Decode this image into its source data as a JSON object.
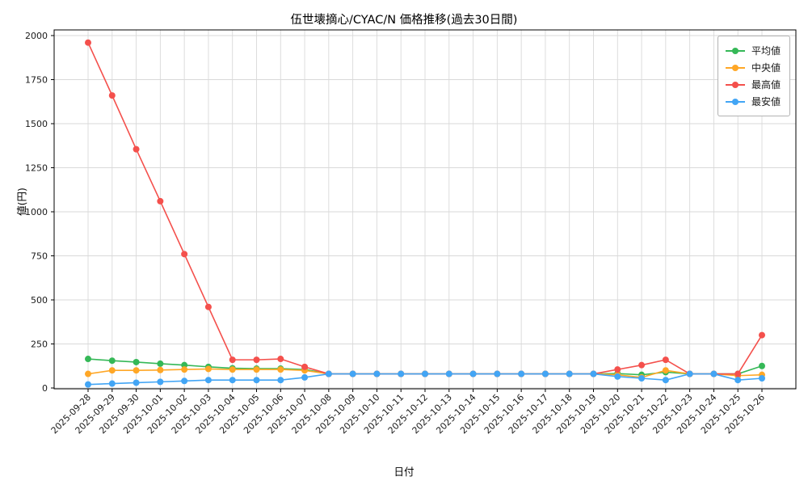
{
  "title": "伍世壊摘心/CYAC/N 価格推移(過去30日間)",
  "xlabel": "日付",
  "ylabel": "値(円)",
  "chart_data": {
    "type": "line",
    "x": [
      "2025-09-28",
      "2025-09-29",
      "2025-09-30",
      "2025-10-01",
      "2025-10-02",
      "2025-10-03",
      "2025-10-04",
      "2025-10-05",
      "2025-10-06",
      "2025-10-07",
      "2025-10-08",
      "2025-10-09",
      "2025-10-10",
      "2025-10-11",
      "2025-10-12",
      "2025-10-13",
      "2025-10-14",
      "2025-10-15",
      "2025-10-16",
      "2025-10-17",
      "2025-10-18",
      "2025-10-19",
      "2025-10-20",
      "2025-10-21",
      "2025-10-22",
      "2025-10-23",
      "2025-10-24",
      "2025-10-25",
      "2025-10-26"
    ],
    "series": [
      {
        "name": "平均値",
        "color": "#35b857",
        "values": [
          165,
          155,
          147,
          138,
          130,
          120,
          112,
          110,
          110,
          105,
          80,
          80,
          80,
          80,
          80,
          80,
          80,
          80,
          80,
          80,
          80,
          80,
          82,
          75,
          90,
          80,
          80,
          80,
          125
        ]
      },
      {
        "name": "中央値",
        "color": "#ffa726",
        "values": [
          80,
          100,
          100,
          102,
          105,
          108,
          105,
          105,
          105,
          100,
          80,
          80,
          80,
          80,
          80,
          80,
          80,
          80,
          80,
          80,
          80,
          80,
          75,
          60,
          100,
          80,
          80,
          70,
          75
        ]
      },
      {
        "name": "最高値",
        "color": "#f4504c",
        "values": [
          1960,
          1660,
          1355,
          1060,
          760,
          460,
          160,
          160,
          165,
          120,
          80,
          80,
          80,
          80,
          80,
          80,
          80,
          80,
          80,
          80,
          80,
          80,
          105,
          130,
          160,
          80,
          80,
          80,
          300
        ]
      },
      {
        "name": "最安値",
        "color": "#42a5f5",
        "values": [
          20,
          25,
          30,
          35,
          40,
          45,
          45,
          45,
          45,
          60,
          80,
          80,
          80,
          80,
          80,
          80,
          80,
          80,
          80,
          80,
          80,
          80,
          65,
          55,
          45,
          80,
          80,
          45,
          55
        ]
      }
    ],
    "yticks": [
      0,
      250,
      500,
      750,
      1000,
      1250,
      1500,
      1750,
      2000
    ],
    "ylim": [
      0,
      2050
    ],
    "grid": true,
    "legend_position": "top-right"
  }
}
